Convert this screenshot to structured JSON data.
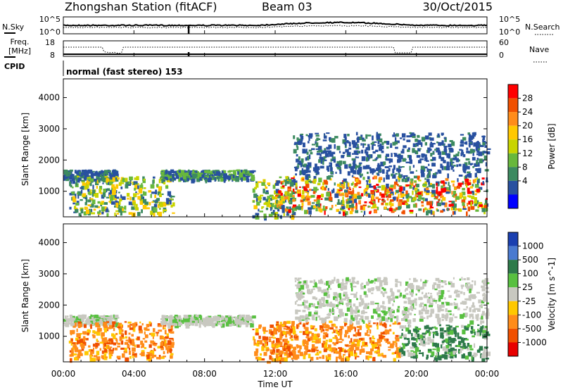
{
  "header": {
    "title": "Zhongshan Station (fitACF)",
    "beam": "Beam 03",
    "date": "30/Oct/2015"
  },
  "sky_panel": {
    "left_label": "N.Sky",
    "left_ticks": [
      "10^5",
      "10^0"
    ],
    "right_ticks": [
      "10^5",
      "10^0"
    ],
    "right_label": "N.Search"
  },
  "freq_panel": {
    "left_label_lines": [
      "Freq.",
      "[MHz]"
    ],
    "left_ticks": [
      "18",
      "8"
    ],
    "right_ticks": [
      "60",
      "0"
    ],
    "right_label": "Nave"
  },
  "cpid": {
    "label": "CPID",
    "text": "normal (fast stereo) 153"
  },
  "x_axis": {
    "label": "Time UT",
    "ticks": [
      "00:00",
      "04:00",
      "08:00",
      "12:00",
      "16:00",
      "20:00",
      "00:00"
    ]
  },
  "chart_data": [
    {
      "type": "heatmap",
      "title": "",
      "quantity": "Power",
      "xlabel": "Time UT",
      "ylabel": "Slant Range [km]",
      "xlim_hours": [
        0,
        24
      ],
      "ylim_km": [
        180,
        4600
      ],
      "yticks": [
        1000,
        2000,
        3000,
        4000
      ],
      "colorbar": {
        "label": "Power [dB]",
        "tick_labels": [
          "28",
          "24",
          "20",
          "16",
          "12",
          "8",
          "4"
        ],
        "colors": [
          "#ff0000",
          "#f05000",
          "#ff8c1a",
          "#ffc800",
          "#c8d400",
          "#68b83c",
          "#3c8a60",
          "#2850a0",
          "#0000ff"
        ]
      },
      "regions": [
        {
          "t": [
            0.0,
            3.0
          ],
          "r": [
            1400,
            1700
          ],
          "level": "blue"
        },
        {
          "t": [
            0.3,
            6.2
          ],
          "r": [
            300,
            1500
          ],
          "level": "mixed"
        },
        {
          "t": [
            5.5,
            10.7
          ],
          "r": [
            1400,
            1700
          ],
          "level": "blue-green"
        },
        {
          "t": [
            10.7,
            13.0
          ],
          "r": [
            200,
            1400
          ],
          "level": "mixed"
        },
        {
          "t": [
            12.0,
            24.0
          ],
          "r": [
            350,
            1500
          ],
          "level": "strong"
        },
        {
          "t": [
            13.0,
            24.0
          ],
          "r": [
            1500,
            2900
          ],
          "level": "blue"
        }
      ]
    },
    {
      "type": "heatmap",
      "title": "",
      "quantity": "Velocity",
      "xlabel": "Time UT",
      "ylabel": "Slant Range [km]",
      "xlim_hours": [
        0,
        24
      ],
      "ylim_km": [
        180,
        4600
      ],
      "yticks": [
        1000,
        2000,
        3000,
        4000
      ],
      "colorbar": {
        "label": "Velocity [m s^-1]",
        "tick_labels": [
          "1000",
          "500",
          "100",
          "25",
          "-25",
          "-100",
          "-500",
          "-1000"
        ],
        "colors": [
          "#1a3fb0",
          "#4a7ad0",
          "#2d7a4a",
          "#58c040",
          "#c8c8c0",
          "#ffc800",
          "#ff8c1a",
          "#f05000",
          "#e80000"
        ]
      },
      "regions": [
        {
          "t": [
            0.0,
            3.0
          ],
          "r": [
            1400,
            1700
          ],
          "level": "gray"
        },
        {
          "t": [
            0.3,
            6.2
          ],
          "r": [
            300,
            1500
          ],
          "level": "orange"
        },
        {
          "t": [
            5.5,
            10.7
          ],
          "r": [
            1400,
            1700
          ],
          "level": "gray"
        },
        {
          "t": [
            10.7,
            13.0
          ],
          "r": [
            200,
            1400
          ],
          "level": "orange"
        },
        {
          "t": [
            12.0,
            19.0
          ],
          "r": [
            300,
            1500
          ],
          "level": "orange"
        },
        {
          "t": [
            19.0,
            24.0
          ],
          "r": [
            300,
            1400
          ],
          "level": "green"
        },
        {
          "t": [
            13.0,
            24.0
          ],
          "r": [
            1500,
            2900
          ],
          "level": "gray"
        }
      ]
    }
  ]
}
